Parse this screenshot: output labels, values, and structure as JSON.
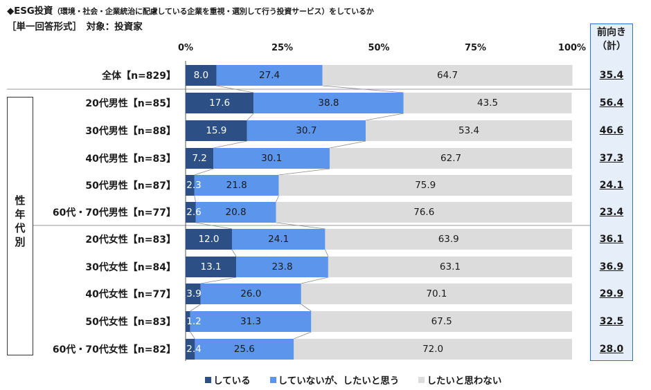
{
  "chart_data": {
    "type": "bar",
    "orientation": "horizontal",
    "stacked": true,
    "title": "◆ESG投資",
    "title_sub": "（環境・社会・企業統治に配慮している企業を重視・選別して行う投資サービス）をしているか",
    "subtitle": "［単一回答形式］　対象：投資家",
    "xlim": [
      0,
      100
    ],
    "x_ticks": [
      "0%",
      "25%",
      "50%",
      "75%",
      "100%"
    ],
    "group_label": "性年代別",
    "right_header": [
      "前向き",
      "（計）"
    ],
    "categories": [
      "全体【n=829】",
      "20代男性【n=85】",
      "30代男性【n=88】",
      "40代男性【n=83】",
      "50代男性【n=87】",
      "60代・70代男性【n=77】",
      "20代女性【n=83】",
      "30代女性【n=84】",
      "40代女性【n=77】",
      "50代女性【n=83】",
      "60代・70代女性【n=82】"
    ],
    "series": [
      {
        "name": "している",
        "color": "#2c4f86",
        "values": [
          8.0,
          17.6,
          15.9,
          7.2,
          2.3,
          2.6,
          12.0,
          13.1,
          3.9,
          1.2,
          2.4
        ]
      },
      {
        "name": "していないが、したいと思う",
        "color": "#5b95ec",
        "values": [
          27.4,
          38.8,
          30.7,
          30.1,
          21.8,
          20.8,
          24.1,
          23.8,
          26.0,
          31.3,
          25.6
        ]
      },
      {
        "name": "したいと思わない",
        "color": "#dcdcdc",
        "values": [
          64.7,
          43.5,
          53.4,
          62.7,
          75.9,
          76.6,
          63.9,
          63.1,
          70.1,
          67.5,
          72.0
        ]
      }
    ],
    "positive_total": [
      "35.4",
      "56.4",
      "46.6",
      "37.3",
      "24.1",
      "23.4",
      "36.1",
      "36.9",
      "29.9",
      "32.5",
      "28.0"
    ],
    "legend_position": "bottom"
  }
}
